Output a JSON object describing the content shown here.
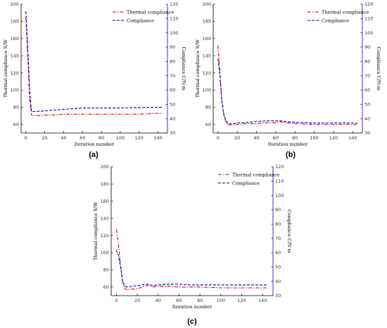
{
  "chart_data": [
    {
      "type": "line",
      "panel_label": "(a)",
      "xlabel": "Iteration number",
      "ylabel": "Thermal compliance S/W",
      "ylabel_right": "Compliance C/N·m",
      "xlim": [
        -5,
        150
      ],
      "ylim": [
        50,
        200
      ],
      "ylim_right": [
        30,
        120
      ],
      "xticks": [
        0,
        20,
        40,
        60,
        80,
        100,
        120,
        140
      ],
      "yticks": [
        60,
        80,
        100,
        120,
        140,
        160,
        180,
        200
      ],
      "yticks_right": [
        30,
        40,
        50,
        60,
        70,
        80,
        90,
        100,
        110,
        120
      ],
      "legend_position": "top-right",
      "series": [
        {
          "name": "Thermal compliance",
          "axis": "left",
          "color": "#dd0000",
          "style": "dash-dot",
          "x": [
            0,
            2,
            4,
            6,
            10,
            20,
            30,
            40,
            60,
            80,
            100,
            120,
            145
          ],
          "y": [
            185,
            140,
            90,
            71,
            70,
            71,
            71,
            72,
            72,
            72,
            72,
            72,
            73
          ]
        },
        {
          "name": "Compliance",
          "axis": "right",
          "color": "#0000cc",
          "style": "dashed",
          "x": [
            0,
            2,
            4,
            6,
            10,
            20,
            30,
            40,
            60,
            80,
            100,
            120,
            145
          ],
          "y": [
            115,
            90,
            60,
            45,
            45,
            45.5,
            46,
            46.5,
            47.5,
            47.5,
            47.5,
            47.8,
            48
          ]
        }
      ]
    },
    {
      "type": "line",
      "panel_label": "(b)",
      "xlabel": "Iteration number",
      "ylabel": "Thermal compliance S/W",
      "ylabel_right": "Compliance C/N·m",
      "xlim": [
        -5,
        150
      ],
      "ylim": [
        50,
        200
      ],
      "ylim_right": [
        30,
        120
      ],
      "xticks": [
        0,
        20,
        40,
        60,
        80,
        100,
        120,
        140
      ],
      "yticks": [
        60,
        80,
        100,
        120,
        140,
        160,
        180,
        200
      ],
      "yticks_right": [
        30,
        40,
        50,
        60,
        70,
        80,
        90,
        100,
        110,
        120
      ],
      "legend_position": "top-right",
      "series": [
        {
          "name": "Thermal compliance",
          "axis": "left",
          "color": "#dd0000",
          "style": "dash-dot",
          "x": [
            0,
            2,
            4,
            6,
            8,
            10,
            15,
            20,
            30,
            40,
            50,
            60,
            65,
            70,
            80,
            100,
            120,
            145
          ],
          "y": [
            152,
            120,
            88,
            72,
            64,
            59,
            60,
            60,
            61,
            61,
            62,
            62,
            63,
            62,
            61,
            60,
            60,
            60
          ]
        },
        {
          "name": "Compliance",
          "axis": "right",
          "color": "#0000cc",
          "style": "dashed",
          "x": [
            0,
            2,
            4,
            6,
            8,
            10,
            15,
            20,
            30,
            40,
            50,
            60,
            65,
            70,
            80,
            100,
            120,
            145
          ],
          "y": [
            82,
            70,
            52,
            43,
            39,
            36.5,
            36.5,
            37,
            37.5,
            38,
            38.5,
            38.5,
            38.5,
            38,
            37.5,
            37,
            37,
            37
          ]
        }
      ]
    },
    {
      "type": "line",
      "panel_label": "(c)",
      "xlabel": "Iteration number",
      "ylabel": "Thermal compliance S/W",
      "ylabel_right": "Compliance C/N·m",
      "xlim": [
        -5,
        150
      ],
      "ylim": [
        50,
        200
      ],
      "ylim_right": [
        30,
        120
      ],
      "xticks": [
        0,
        20,
        40,
        60,
        80,
        100,
        120,
        140
      ],
      "yticks": [
        60,
        80,
        100,
        120,
        140,
        160,
        180,
        200
      ],
      "yticks_right": [
        30,
        40,
        50,
        60,
        70,
        80,
        90,
        100,
        110,
        120
      ],
      "legend_position": "top-right",
      "series": [
        {
          "name": "Thermal compliance",
          "axis": "left",
          "color": "#dd0000",
          "style": "dash-dot",
          "x": [
            0,
            2,
            4,
            6,
            8,
            10,
            20,
            30,
            35,
            40,
            50,
            60,
            70,
            80,
            100,
            120,
            145
          ],
          "y": [
            127,
            110,
            85,
            66,
            58,
            57,
            58,
            62,
            60,
            61,
            61,
            60,
            60,
            60,
            59,
            59,
            59
          ]
        },
        {
          "name": "Compliance",
          "axis": "right",
          "color": "#0000cc",
          "style": "dashed",
          "x": [
            0,
            2,
            4,
            6,
            8,
            10,
            20,
            30,
            35,
            40,
            50,
            60,
            70,
            80,
            100,
            120,
            145
          ],
          "y": [
            62,
            58,
            50,
            40,
            36.5,
            36,
            37,
            38,
            37,
            37.5,
            38,
            38,
            37.5,
            37.5,
            37.5,
            37.5,
            37.5
          ]
        }
      ]
    }
  ]
}
